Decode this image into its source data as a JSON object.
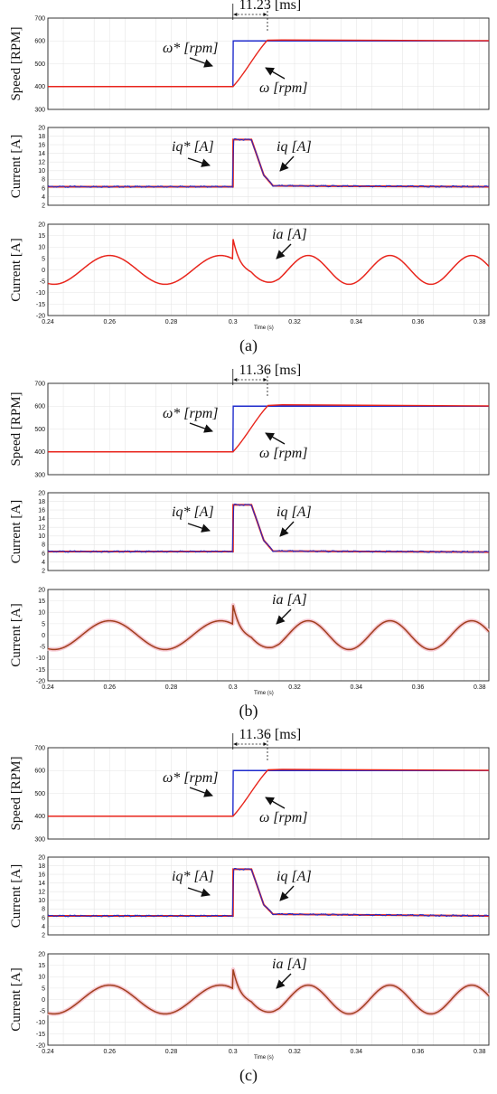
{
  "colors": {
    "red": "#e8251c",
    "blue": "#1f2bcc",
    "brown": "#a0401e",
    "pink_band": "#f7c9d3"
  },
  "chart_data": [
    {
      "caption": "(a)",
      "type": "line",
      "time_label": "Time (s)",
      "x_ticks": [
        "0.24",
        "0.26",
        "0.28",
        "0.3",
        "0.32",
        "0.34",
        "0.36",
        "0.38"
      ],
      "xlim": [
        0.24,
        0.383
      ],
      "panels": [
        {
          "ylabel": "Speed [RPM]",
          "ylim": [
            300,
            700
          ],
          "y_ticks": [
            "300",
            "400",
            "500",
            "600",
            "700"
          ],
          "series": [
            {
              "label": "ω* [rpm]",
              "values": {
                "x": [
                  0.24,
                  0.3,
                  0.3001,
                  0.383
                ],
                "y": [
                  400,
                  400,
                  600,
                  600
                ]
              }
            },
            {
              "label": "ω [rpm]",
              "values": {
                "x": [
                  0.24,
                  0.3,
                  0.3112,
                  0.316,
                  0.383
                ],
                "y": [
                  400,
                  400,
                  603,
                  604,
                  601
                ]
              }
            }
          ],
          "annotations": [
            {
              "text": "11.23 [ms]"
            },
            {
              "text": "ω* [rpm]"
            },
            {
              "text": "ω [rpm]"
            }
          ]
        },
        {
          "ylabel": "Current [A]",
          "ylim": [
            2,
            20
          ],
          "y_ticks": [
            "2",
            "4",
            "6",
            "8",
            "10",
            "12",
            "14",
            "16",
            "18",
            "20"
          ],
          "series": [
            {
              "label": "iq* [A]",
              "values": {
                "x": [
                  0.24,
                  0.3,
                  0.3001,
                  0.306,
                  0.31,
                  0.313,
                  0.383
                ],
                "y": [
                  6.3,
                  6.3,
                  17.2,
                  17.2,
                  9,
                  6.5,
                  6.3
                ]
              }
            },
            {
              "label": "iq [A]",
              "values": {
                "x": [
                  0.24,
                  0.3,
                  0.3001,
                  0.306,
                  0.31,
                  0.313,
                  0.383
                ],
                "y": [
                  6.3,
                  6.3,
                  17.2,
                  17.2,
                  9,
                  6.5,
                  6.3
                ]
              }
            }
          ],
          "annotations": [
            {
              "text": "iq* [A]"
            },
            {
              "text": "iq [A]"
            }
          ]
        },
        {
          "ylabel": "Current [A]",
          "ylim": [
            -20,
            20
          ],
          "y_ticks": [
            "-20",
            "-15",
            "-10",
            "-5",
            "0",
            "5",
            "10",
            "15",
            "20"
          ],
          "series": [
            {
              "label": "ia [A]",
              "values": {
                "amplitude_before": 6.3,
                "amplitude_after": 6.3,
                "period_before": 0.036,
                "period_after": 0.0265,
                "peak_at_step": 13.8,
                "min_after_step": -7.5
              }
            }
          ],
          "annotations": [
            {
              "text": "ia [A]"
            }
          ]
        }
      ]
    },
    {
      "caption": "(b)",
      "type": "line",
      "time_label": "Time (s)",
      "x_ticks": [
        "0.24",
        "0.26",
        "0.28",
        "0.3",
        "0.32",
        "0.34",
        "0.36",
        "0.38"
      ],
      "xlim": [
        0.24,
        0.383
      ],
      "panels": [
        {
          "ylabel": "Speed [RPM]",
          "ylim": [
            300,
            700
          ],
          "y_ticks": [
            "300",
            "400",
            "500",
            "600",
            "700"
          ],
          "series": [
            {
              "label": "ω* [rpm]",
              "values": {
                "x": [
                  0.24,
                  0.3,
                  0.3001,
                  0.383
                ],
                "y": [
                  400,
                  400,
                  600,
                  600
                ]
              }
            },
            {
              "label": "ω [rpm]",
              "values": {
                "x": [
                  0.24,
                  0.3,
                  0.3114,
                  0.316,
                  0.383
                ],
                "y": [
                  400,
                  400,
                  603,
                  606,
                  601
                ]
              }
            }
          ],
          "annotations": [
            {
              "text": "11.36 [ms]"
            },
            {
              "text": "ω* [rpm]"
            },
            {
              "text": "ω [rpm]"
            }
          ]
        },
        {
          "ylabel": "Current [A]",
          "ylim": [
            2,
            20
          ],
          "y_ticks": [
            "2",
            "4",
            "6",
            "8",
            "10",
            "12",
            "14",
            "16",
            "18",
            "20"
          ],
          "series": [
            {
              "label": "iq* [A]",
              "values": {
                "x": [
                  0.24,
                  0.3,
                  0.3001,
                  0.306,
                  0.31,
                  0.313,
                  0.383
                ],
                "y": [
                  6.4,
                  6.4,
                  17.2,
                  17.2,
                  9,
                  6.5,
                  6.3
                ]
              }
            },
            {
              "label": "iq [A]",
              "values": {
                "x": [
                  0.24,
                  0.3,
                  0.3001,
                  0.306,
                  0.31,
                  0.313,
                  0.383
                ],
                "y": [
                  6.4,
                  6.4,
                  17.2,
                  17.2,
                  9,
                  6.5,
                  6.3
                ]
              }
            }
          ],
          "annotations": [
            {
              "text": "iq* [A]"
            },
            {
              "text": "iq [A]"
            }
          ]
        },
        {
          "ylabel": "Current [A]",
          "ylim": [
            -20,
            20
          ],
          "y_ticks": [
            "-20",
            "-15",
            "-10",
            "-5",
            "0",
            "5",
            "10",
            "15",
            "20"
          ],
          "series": [
            {
              "label": "ia [A]",
              "values": {
                "amplitude_before": 6.3,
                "amplitude_after": 6.3,
                "period_before": 0.036,
                "period_after": 0.0265,
                "peak_at_step": 13.5,
                "min_after_step": -7.8
              }
            }
          ],
          "annotations": [
            {
              "text": "ia [A]"
            }
          ]
        }
      ]
    },
    {
      "caption": "(c)",
      "type": "line",
      "time_label": "Time (s)",
      "x_ticks": [
        "0.24",
        "0.26",
        "0.28",
        "0.3",
        "0.32",
        "0.34",
        "0.36",
        "0.38"
      ],
      "xlim": [
        0.24,
        0.383
      ],
      "panels": [
        {
          "ylabel": "Speed [RPM]",
          "ylim": [
            300,
            700
          ],
          "y_ticks": [
            "300",
            "400",
            "500",
            "600",
            "700"
          ],
          "series": [
            {
              "label": "ω* [rpm]",
              "values": {
                "x": [
                  0.24,
                  0.3,
                  0.3001,
                  0.383
                ],
                "y": [
                  400,
                  400,
                  600,
                  600
                ]
              }
            },
            {
              "label": "ω [rpm]",
              "values": {
                "x": [
                  0.24,
                  0.3,
                  0.3114,
                  0.316,
                  0.383
                ],
                "y": [
                  400,
                  400,
                  603,
                  605,
                  601
                ]
              }
            }
          ],
          "annotations": [
            {
              "text": "11.36 [ms]"
            },
            {
              "text": "ω* [rpm]"
            },
            {
              "text": "ω [rpm]"
            }
          ]
        },
        {
          "ylabel": "Current [A]",
          "ylim": [
            2,
            20
          ],
          "y_ticks": [
            "2",
            "4",
            "6",
            "8",
            "10",
            "12",
            "14",
            "16",
            "18",
            "20"
          ],
          "series": [
            {
              "label": "iq* [A]",
              "values": {
                "x": [
                  0.24,
                  0.3,
                  0.3001,
                  0.306,
                  0.31,
                  0.313,
                  0.383
                ],
                "y": [
                  6.4,
                  6.4,
                  17.2,
                  17.2,
                  9,
                  6.8,
                  6.4
                ]
              }
            },
            {
              "label": "iq [A]",
              "values": {
                "x": [
                  0.24,
                  0.3,
                  0.3001,
                  0.306,
                  0.31,
                  0.313,
                  0.383
                ],
                "y": [
                  6.4,
                  6.4,
                  17.2,
                  17.2,
                  9,
                  6.8,
                  6.4
                ]
              }
            }
          ],
          "annotations": [
            {
              "text": "iq* [A]"
            },
            {
              "text": "iq [A]"
            }
          ]
        },
        {
          "ylabel": "Current [A]",
          "ylim": [
            -20,
            20
          ],
          "y_ticks": [
            "-20",
            "-15",
            "-10",
            "-5",
            "0",
            "5",
            "10",
            "15",
            "20"
          ],
          "series": [
            {
              "label": "ia [A]",
              "values": {
                "amplitude_before": 6.3,
                "amplitude_after": 6.3,
                "period_before": 0.036,
                "period_after": 0.0265,
                "peak_at_step": 13.5,
                "min_after_step": -8.0
              }
            }
          ],
          "annotations": [
            {
              "text": "ia [A]"
            }
          ]
        }
      ]
    }
  ]
}
